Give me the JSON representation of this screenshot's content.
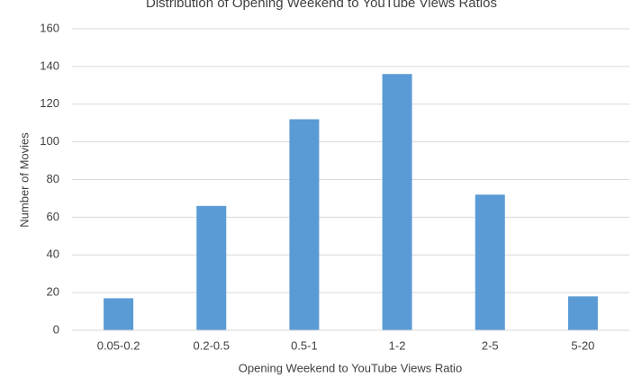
{
  "chart_data": {
    "type": "bar",
    "title": "Distribution of Opening Weekend to YouTube Views Ratios",
    "x_label": "Opening Weekend to YouTube Views Ratio",
    "y_label": "Number of Movies",
    "categories": [
      "0.05-0.2",
      "0.2-0.5",
      "0.5-1",
      "1-2",
      "2-5",
      "5-20"
    ],
    "values": [
      17,
      66,
      112,
      136,
      72,
      18
    ],
    "color": "#5b9bd5",
    "ylim": [
      0,
      160
    ],
    "yticks": [
      0,
      20,
      40,
      60,
      80,
      100,
      120,
      140,
      160
    ],
    "grid": true
  }
}
